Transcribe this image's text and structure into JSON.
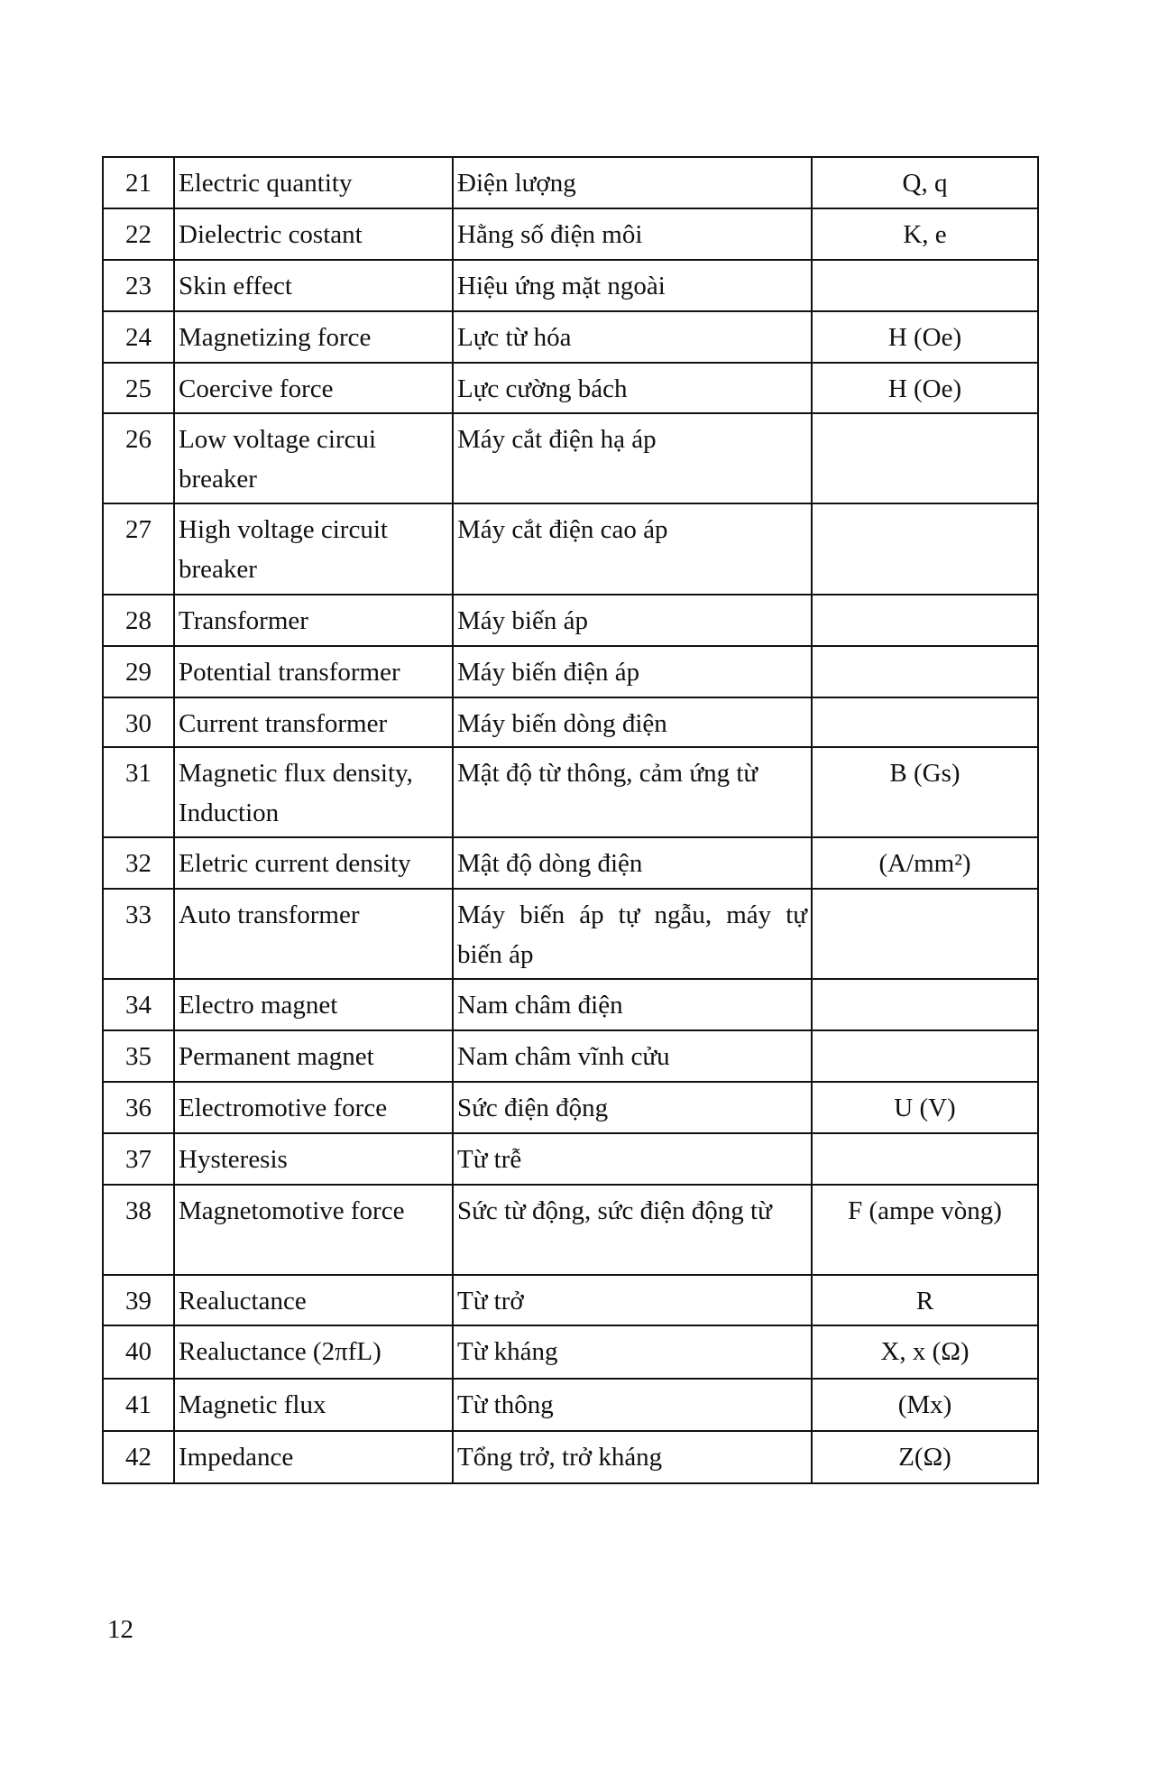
{
  "rows": [
    {
      "no": "21",
      "en": "Electric quantity",
      "vi": "Điện lượng",
      "sym": "Q, q"
    },
    {
      "no": "22",
      "en": "Dielectric costant",
      "vi": "Hằng số điện môi",
      "sym": "K, e"
    },
    {
      "no": "23",
      "en": "Skin effect",
      "vi": "Hiệu ứng mặt ngoài",
      "sym": ""
    },
    {
      "no": "24",
      "en": "Magnetizing force",
      "vi": "Lực từ hóa",
      "sym": "H (Oe)"
    },
    {
      "no": "25",
      "en": "Coercive force",
      "vi": "Lực cường bách",
      "sym": "H (Oe)"
    },
    {
      "no": "26",
      "en": "Low voltage circui breaker",
      "vi": "Máy cắt điện hạ áp",
      "sym": ""
    },
    {
      "no": "27",
      "en": "High voltage circuit breaker",
      "vi": "Máy cắt điện cao áp",
      "sym": ""
    },
    {
      "no": "28",
      "en": "Transformer",
      "vi": "Máy biến áp",
      "sym": ""
    },
    {
      "no": "29",
      "en": "Potential transformer",
      "vi": "Máy biến điện áp",
      "sym": ""
    },
    {
      "no": "30",
      "en": "Current transformer",
      "vi": "Máy biến dòng điện",
      "sym": ""
    },
    {
      "no": "31",
      "en": "Magnetic flux density, Induction",
      "vi": "Mật độ từ thông, cảm ứng từ",
      "sym": "B (Gs)"
    },
    {
      "no": "32",
      "en": "Eletric current density",
      "vi": "Mật độ dòng điện",
      "sym": "(A/mm²)"
    },
    {
      "no": "33",
      "en": "Auto transformer",
      "vi": "Máy biến áp tự ngẫu, máy tự biến áp",
      "sym": ""
    },
    {
      "no": "34",
      "en": "Electro magnet",
      "vi": "Nam châm điện",
      "sym": ""
    },
    {
      "no": "35",
      "en": "Permanent magnet",
      "vi": "Nam châm vĩnh cửu",
      "sym": ""
    },
    {
      "no": "36",
      "en": "Electromotive force",
      "vi": "Sức điện động",
      "sym": "U (V)"
    },
    {
      "no": "37",
      "en": "Hysteresis",
      "vi": "Từ trễ",
      "sym": ""
    },
    {
      "no": "38",
      "en": "Magnetomotive force",
      "vi": "Sức từ động, sức điện động từ",
      "sym": "F (ampe vòng)"
    },
    {
      "no": "39",
      "en": "Realuctance",
      "vi": "Từ trở",
      "sym": "R"
    },
    {
      "no": "40",
      "en": "Realuctance (2πfL)",
      "vi": "Từ kháng",
      "sym": "X, x (Ω)"
    },
    {
      "no": "41",
      "en": "Magnetic flux",
      "vi": "Từ thông",
      "sym": "(Mx)"
    },
    {
      "no": "42",
      "en": "Impedance",
      "vi": "Tổng trở, trở kháng",
      "sym": "Z(Ω)"
    }
  ],
  "page_number": "12"
}
